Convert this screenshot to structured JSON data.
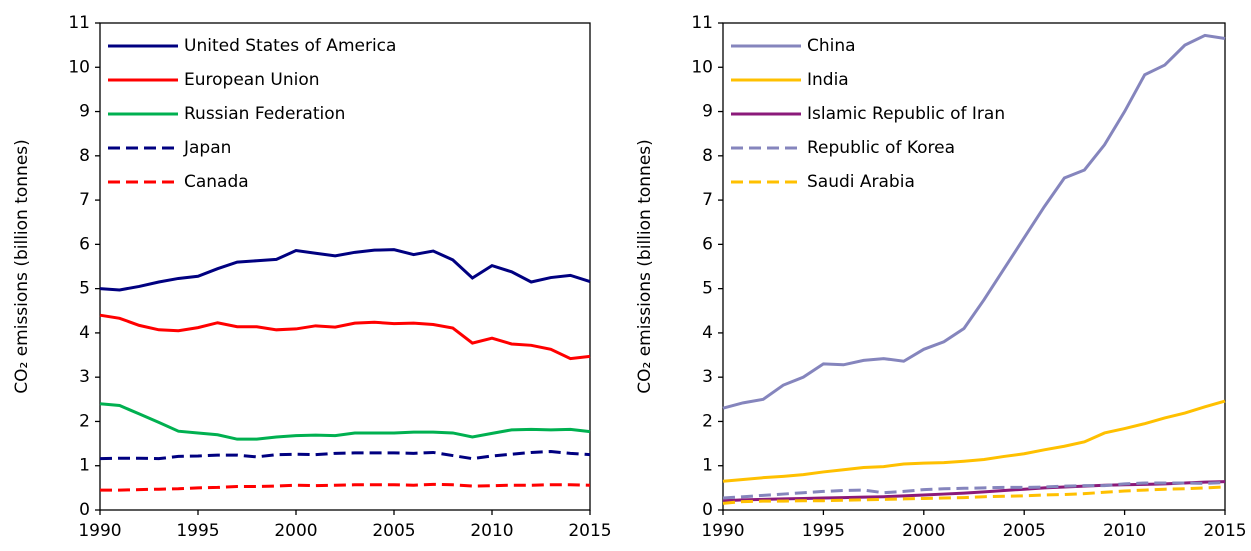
{
  "chart_data": [
    {
      "type": "line",
      "y_label": "CO₂ emissions (billion tonnes)",
      "legend": "upper left",
      "x": [
        1990,
        1991,
        1992,
        1993,
        1994,
        1995,
        1996,
        1997,
        1998,
        1999,
        2000,
        2001,
        2002,
        2003,
        2004,
        2005,
        2006,
        2007,
        2008,
        2009,
        2010,
        2011,
        2012,
        2013,
        2014,
        2015
      ],
      "xlim": [
        1990,
        2015
      ],
      "xticks": [
        1990,
        1995,
        2000,
        2005,
        2010,
        2015
      ],
      "ylim": [
        0,
        11
      ],
      "yticks": [
        0,
        1,
        2,
        3,
        4,
        5,
        6,
        7,
        8,
        9,
        10,
        11
      ],
      "series": [
        {
          "name": "United States of America",
          "color": "#000080",
          "dash": false,
          "values": [
            5.0,
            4.97,
            5.05,
            5.15,
            5.23,
            5.28,
            5.45,
            5.6,
            5.63,
            5.66,
            5.86,
            5.8,
            5.74,
            5.82,
            5.87,
            5.88,
            5.77,
            5.85,
            5.65,
            5.24,
            5.52,
            5.38,
            5.15,
            5.25,
            5.3,
            5.16
          ]
        },
        {
          "name": "European Union",
          "color": "#ff0000",
          "dash": false,
          "values": [
            4.4,
            4.33,
            4.17,
            4.07,
            4.05,
            4.12,
            4.23,
            4.14,
            4.14,
            4.07,
            4.09,
            4.16,
            4.13,
            4.22,
            4.24,
            4.21,
            4.22,
            4.19,
            4.11,
            3.77,
            3.88,
            3.75,
            3.72,
            3.63,
            3.42,
            3.47
          ]
        },
        {
          "name": "Russian Federation",
          "color": "#00b050",
          "dash": false,
          "values": [
            2.4,
            2.36,
            2.17,
            1.98,
            1.78,
            1.74,
            1.7,
            1.6,
            1.6,
            1.65,
            1.68,
            1.69,
            1.68,
            1.74,
            1.74,
            1.74,
            1.76,
            1.76,
            1.74,
            1.65,
            1.73,
            1.81,
            1.82,
            1.81,
            1.82,
            1.77
          ]
        },
        {
          "name": "Japan",
          "color": "#000080",
          "dash": true,
          "values": [
            1.16,
            1.17,
            1.17,
            1.16,
            1.21,
            1.22,
            1.24,
            1.24,
            1.2,
            1.25,
            1.26,
            1.25,
            1.28,
            1.29,
            1.29,
            1.29,
            1.28,
            1.3,
            1.23,
            1.16,
            1.22,
            1.26,
            1.3,
            1.32,
            1.28,
            1.25
          ]
        },
        {
          "name": "Canada",
          "color": "#ff0000",
          "dash": true,
          "values": [
            0.45,
            0.45,
            0.46,
            0.47,
            0.48,
            0.5,
            0.51,
            0.53,
            0.53,
            0.54,
            0.56,
            0.55,
            0.56,
            0.57,
            0.57,
            0.57,
            0.56,
            0.58,
            0.57,
            0.54,
            0.55,
            0.56,
            0.56,
            0.57,
            0.57,
            0.56
          ]
        }
      ]
    },
    {
      "type": "line",
      "y_label": "CO₂ emissions (billion tonnes)",
      "legend": "upper left",
      "x": [
        1990,
        1991,
        1992,
        1993,
        1994,
        1995,
        1996,
        1997,
        1998,
        1999,
        2000,
        2001,
        2002,
        2003,
        2004,
        2005,
        2006,
        2007,
        2008,
        2009,
        2010,
        2011,
        2012,
        2013,
        2014,
        2015
      ],
      "xlim": [
        1990,
        2015
      ],
      "xticks": [
        1990,
        1995,
        2000,
        2005,
        2010,
        2015
      ],
      "ylim": [
        0,
        11
      ],
      "yticks": [
        0,
        1,
        2,
        3,
        4,
        5,
        6,
        7,
        8,
        9,
        10,
        11
      ],
      "series": [
        {
          "name": "China",
          "color": "#8585bd",
          "dash": false,
          "values": [
            2.3,
            2.42,
            2.5,
            2.82,
            3.0,
            3.3,
            3.28,
            3.38,
            3.42,
            3.36,
            3.63,
            3.8,
            4.1,
            4.75,
            5.45,
            6.15,
            6.85,
            7.5,
            7.68,
            8.25,
            9.0,
            9.83,
            10.05,
            10.5,
            10.72,
            10.65
          ]
        },
        {
          "name": "India",
          "color": "#ffc000",
          "dash": false,
          "values": [
            0.65,
            0.69,
            0.73,
            0.76,
            0.8,
            0.86,
            0.91,
            0.96,
            0.98,
            1.04,
            1.06,
            1.07,
            1.1,
            1.14,
            1.21,
            1.27,
            1.36,
            1.44,
            1.54,
            1.74,
            1.84,
            1.95,
            2.08,
            2.19,
            2.33,
            2.46
          ]
        },
        {
          "name": "Islamic Republic of Iran",
          "color": "#8b1a7a",
          "dash": false,
          "values": [
            0.21,
            0.23,
            0.24,
            0.25,
            0.26,
            0.27,
            0.28,
            0.29,
            0.3,
            0.32,
            0.34,
            0.36,
            0.38,
            0.41,
            0.44,
            0.47,
            0.5,
            0.52,
            0.54,
            0.56,
            0.57,
            0.58,
            0.59,
            0.61,
            0.63,
            0.64
          ]
        },
        {
          "name": "Republic of Korea",
          "color": "#8585bd",
          "dash": true,
          "values": [
            0.27,
            0.3,
            0.33,
            0.36,
            0.39,
            0.42,
            0.44,
            0.45,
            0.39,
            0.42,
            0.46,
            0.48,
            0.49,
            0.5,
            0.51,
            0.51,
            0.52,
            0.54,
            0.55,
            0.55,
            0.59,
            0.61,
            0.61,
            0.61,
            0.6,
            0.62
          ]
        },
        {
          "name": "Saudi Arabia",
          "color": "#ffc000",
          "dash": true,
          "values": [
            0.15,
            0.19,
            0.2,
            0.2,
            0.21,
            0.21,
            0.22,
            0.23,
            0.24,
            0.25,
            0.26,
            0.27,
            0.28,
            0.3,
            0.31,
            0.32,
            0.34,
            0.35,
            0.37,
            0.4,
            0.43,
            0.45,
            0.47,
            0.48,
            0.5,
            0.52
          ]
        }
      ]
    }
  ]
}
